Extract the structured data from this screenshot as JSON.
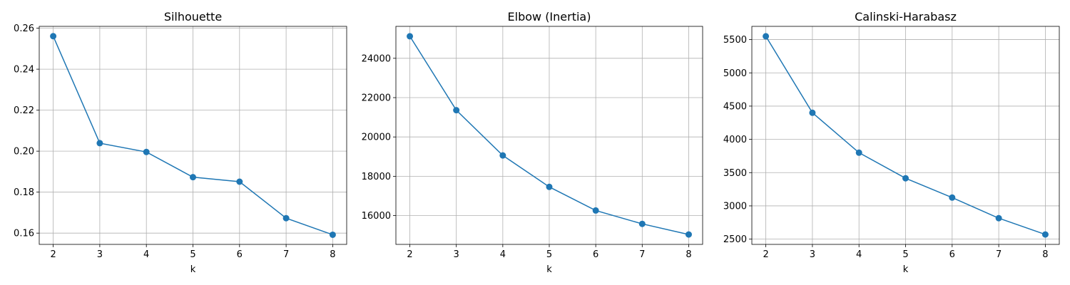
{
  "chart_data": [
    {
      "type": "line",
      "title": "Silhouette",
      "xlabel": "k",
      "ylabel": "",
      "x": [
        2,
        3,
        4,
        5,
        6,
        7,
        8
      ],
      "series": [
        {
          "values": [
            0.2561,
            0.2039,
            0.1996,
            0.1873,
            0.1851,
            0.1673,
            0.1592
          ]
        }
      ],
      "xlim": [
        1.7,
        8.3
      ],
      "ylim": [
        0.1545,
        0.2609
      ],
      "xticks": [
        2,
        3,
        4,
        5,
        6,
        7,
        8
      ],
      "yticks": [
        0.16,
        0.18,
        0.2,
        0.22,
        0.24,
        0.26
      ],
      "ytick_labels": [
        "0.16",
        "0.18",
        "0.20",
        "0.22",
        "0.24",
        "0.26"
      ],
      "grid": true,
      "marker": "circle"
    },
    {
      "type": "line",
      "title": "Elbow (Inertia)",
      "xlabel": "k",
      "ylabel": "",
      "x": [
        2,
        3,
        4,
        5,
        6,
        7,
        8
      ],
      "series": [
        {
          "values": [
            25120,
            21360,
            19060,
            17460,
            16260,
            15580,
            15040
          ]
        }
      ],
      "xlim": [
        1.7,
        8.3
      ],
      "ylim": [
        14536,
        25624
      ],
      "xticks": [
        2,
        3,
        4,
        5,
        6,
        7,
        8
      ],
      "yticks": [
        16000,
        18000,
        20000,
        22000,
        24000
      ],
      "ytick_labels": [
        "16000",
        "18000",
        "20000",
        "22000",
        "24000"
      ],
      "grid": true,
      "marker": "circle"
    },
    {
      "type": "line",
      "title": "Calinski-Harabasz",
      "xlabel": "k",
      "ylabel": "",
      "x": [
        2,
        3,
        4,
        5,
        6,
        7,
        8
      ],
      "series": [
        {
          "values": [
            5550,
            4400,
            3800,
            3415,
            3125,
            2815,
            2570
          ]
        }
      ],
      "xlim": [
        1.7,
        8.3
      ],
      "ylim": [
        2421,
        5699
      ],
      "xticks": [
        2,
        3,
        4,
        5,
        6,
        7,
        8
      ],
      "yticks": [
        2500,
        3000,
        3500,
        4000,
        4500,
        5000,
        5500
      ],
      "ytick_labels": [
        "2500",
        "3000",
        "3500",
        "4000",
        "4500",
        "5000",
        "5500"
      ],
      "grid": true,
      "marker": "circle"
    }
  ],
  "colors": {
    "line": "#1f77b4",
    "grid": "#b0b0b0",
    "axis": "#000000"
  }
}
